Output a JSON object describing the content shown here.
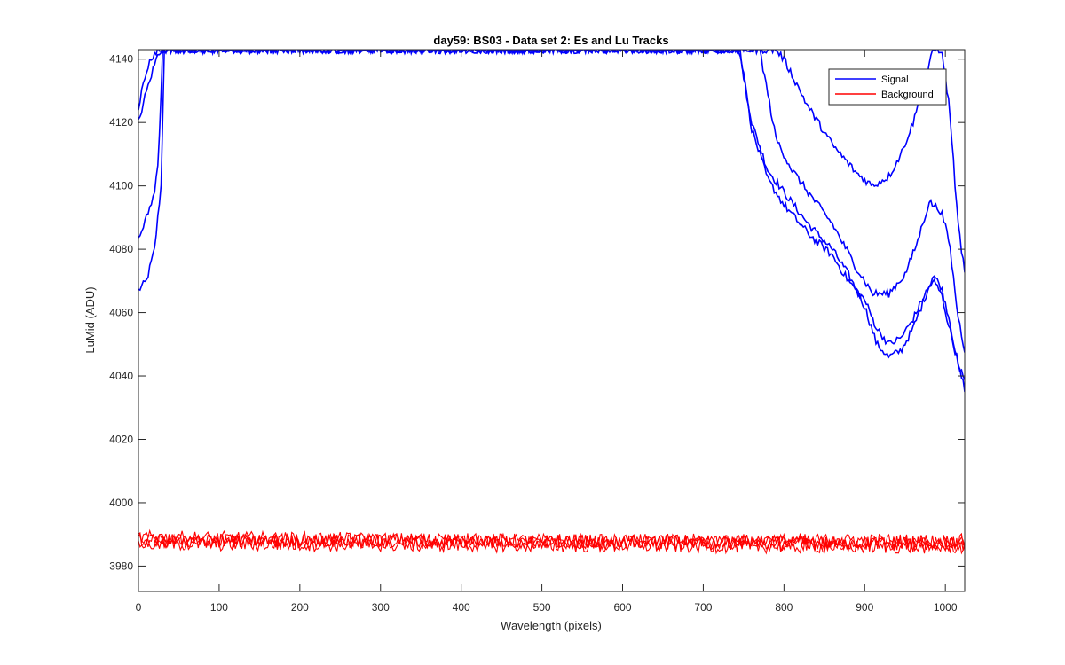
{
  "chart_data": {
    "type": "line",
    "title": "day59: BS03 - Data set 2: Es and Lu Tracks",
    "xlabel": "Wavelength (pixels)",
    "ylabel": "LuMid (ADU)",
    "xlim": [
      0,
      1024
    ],
    "ylim": [
      3972,
      4143
    ],
    "xticks": [
      0,
      100,
      200,
      300,
      400,
      500,
      600,
      700,
      800,
      900,
      1000
    ],
    "yticks": [
      3980,
      4000,
      4020,
      4040,
      4060,
      4080,
      4100,
      4120,
      4140
    ],
    "grid": false,
    "legend": {
      "position": "top-right",
      "entries": [
        "Signal",
        "Background"
      ]
    },
    "series": [
      {
        "name": "Signal",
        "color": "#0000ff",
        "tracks": [
          {
            "x": [
              0,
              10,
              20,
              28,
              32,
              40,
              720,
              745,
              760,
              780,
              800,
              830,
              860,
              880,
              900,
              915,
              930,
              945,
              960,
              975,
              985,
              995,
              1005,
              1015,
              1024
            ],
            "y": [
              4067,
              4070,
              4080,
              4100,
              4143,
              4143,
              4143,
              4143,
              4120,
              4105,
              4098,
              4088,
              4080,
              4072,
              4062,
              4050,
              4046,
              4048,
              4055,
              4065,
              4072,
              4068,
              4058,
              4044,
              4036
            ]
          },
          {
            "x": [
              0,
              10,
              20,
              25,
              30,
              40,
              720,
              745,
              760,
              780,
              800,
              830,
              860,
              880,
              900,
              915,
              930,
              945,
              960,
              975,
              985,
              995,
              1005,
              1015,
              1024
            ],
            "y": [
              4083,
              4090,
              4098,
              4110,
              4143,
              4143,
              4143,
              4143,
              4118,
              4102,
              4094,
              4085,
              4078,
              4070,
              4064,
              4055,
              4050,
              4052,
              4058,
              4066,
              4070,
              4066,
              4055,
              4045,
              4038
            ]
          },
          {
            "x": [
              0,
              8,
              16,
              22,
              28,
              40,
              740,
              770,
              790,
              810,
              830,
              860,
              890,
              910,
              930,
              950,
              965,
              980,
              995,
              1005,
              1015,
              1024
            ],
            "y": [
              4120,
              4128,
              4135,
              4140,
              4143,
              4143,
              4143,
              4143,
              4115,
              4105,
              4098,
              4088,
              4074,
              4066,
              4066,
              4072,
              4082,
              4095,
              4092,
              4082,
              4060,
              4048
            ]
          },
          {
            "x": [
              0,
              6,
              12,
              18,
              24,
              40,
              790,
              800,
              830,
              860,
              890,
              910,
              930,
              945,
              960,
              975,
              985,
              995,
              1005,
              1015,
              1024
            ],
            "y": [
              4125,
              4132,
              4138,
              4141,
              4143,
              4143,
              4143,
              4140,
              4125,
              4113,
              4104,
              4100,
              4103,
              4110,
              4120,
              4133,
              4143,
              4143,
              4125,
              4090,
              4072
            ]
          }
        ]
      },
      {
        "name": "Background",
        "color": "#ff0000",
        "tracks": [
          {
            "x": [
              0,
              1024
            ],
            "y": [
              3989,
              3987
            ]
          },
          {
            "x": [
              0,
              1024
            ],
            "y": [
              3988,
              3988
            ]
          },
          {
            "x": [
              0,
              1024
            ],
            "y": [
              3987,
              3986
            ]
          },
          {
            "x": [
              0,
              1024
            ],
            "y": [
              3988,
              3987
            ]
          }
        ]
      }
    ]
  }
}
